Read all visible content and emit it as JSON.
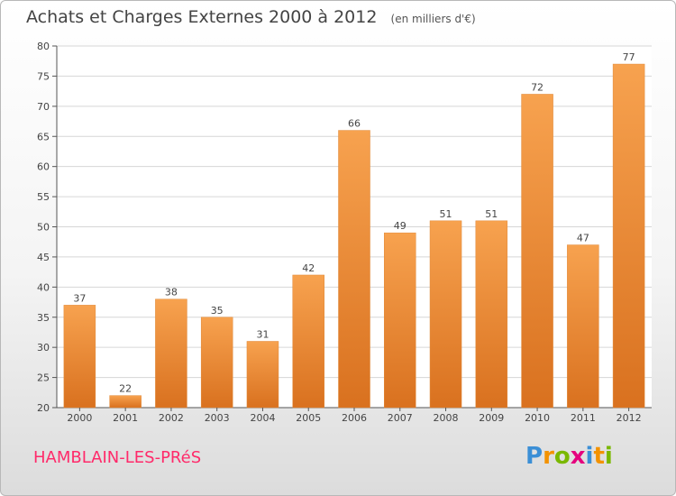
{
  "chart_data": {
    "type": "bar",
    "title": "Achats et Charges Externes 2000 à 2012",
    "subtitle": "(en milliers d'€)",
    "categories": [
      "2000",
      "2001",
      "2002",
      "2003",
      "2004",
      "2005",
      "2006",
      "2007",
      "2008",
      "2009",
      "2010",
      "2011",
      "2012"
    ],
    "values": [
      37,
      22,
      38,
      35,
      31,
      42,
      66,
      49,
      51,
      51,
      72,
      47,
      77
    ],
    "ylim": [
      20,
      80
    ],
    "yticks": [
      20,
      25,
      30,
      35,
      40,
      45,
      50,
      55,
      60,
      65,
      70,
      75,
      80
    ],
    "grid": true,
    "bar_color_top": "#f7a24f",
    "bar_color_bottom": "#d9711f"
  },
  "footer": {
    "commune": "HAMBLAIN-LES-PRéS",
    "commune_color": "#ff2a6a",
    "logo_letters": [
      "P",
      "r",
      "o",
      "x",
      "i",
      "t",
      "i"
    ],
    "logo_colors": [
      "#3b8fd6",
      "#f39200",
      "#7ab800",
      "#e5007e",
      "#3b8fd6",
      "#f39200",
      "#7ab800"
    ]
  }
}
